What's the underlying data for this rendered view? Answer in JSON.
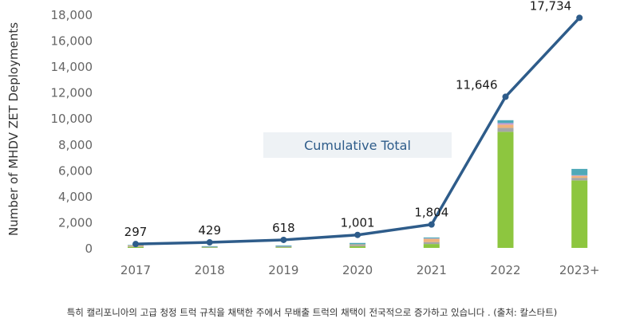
{
  "chart_data": {
    "type": "bar+line",
    "categories": [
      "2017",
      "2018",
      "2019",
      "2020",
      "2021",
      "2022",
      "2023+"
    ],
    "ylabel": "Number of MHDV ZET Deployments",
    "ylim": [
      0,
      18000
    ],
    "yticks": [
      "0",
      "2,000",
      "4,000",
      "6,000",
      "8,000",
      "10,000",
      "12,000",
      "14,000",
      "16,000",
      "18,000"
    ],
    "grid": false,
    "annotation": "Cumulative Total",
    "line": {
      "values": [
        297,
        429,
        618,
        1001,
        1804,
        11646,
        17734
      ],
      "labels": [
        "297",
        "429",
        "618",
        "1,001",
        "1,804",
        "11,646",
        "17,734"
      ],
      "color": "#2e5c8a"
    },
    "stacked_bars": [
      {
        "color": "#8dc63f",
        "values": [
          80,
          40,
          50,
          120,
          300,
          8950,
          5200
        ]
      },
      {
        "color": "#a6a6a6",
        "values": [
          50,
          50,
          80,
          100,
          150,
          300,
          200
        ]
      },
      {
        "color": "#f0b27a",
        "values": [
          60,
          0,
          0,
          50,
          250,
          250,
          150
        ]
      },
      {
        "color": "#c39bd3",
        "values": [
          0,
          0,
          0,
          0,
          30,
          120,
          50
        ]
      },
      {
        "color": "#4ea8b8",
        "values": [
          40,
          42,
          59,
          113,
          73,
          222,
          488
        ]
      },
      {
        "color": "#555555",
        "values": [
          0,
          0,
          0,
          0,
          0,
          0,
          0
        ]
      }
    ]
  },
  "caption": "특히 캘리포니아의 고급 청정 트럭 규칙을 채택한 주에서 무배출 트럭의 채택이 전국적으로 증가하고 있습니다 . (출처: 칼스타트)"
}
